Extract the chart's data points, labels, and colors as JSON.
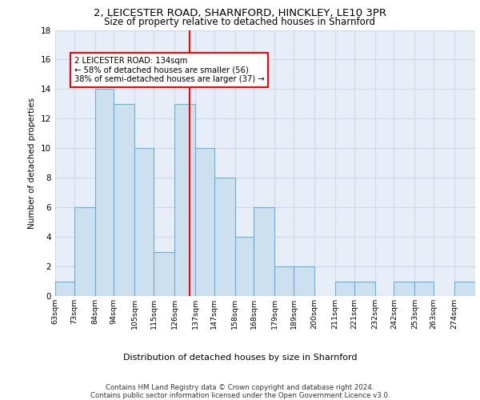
{
  "title1": "2, LEICESTER ROAD, SHARNFORD, HINCKLEY, LE10 3PR",
  "title2": "Size of property relative to detached houses in Sharnford",
  "xlabel": "Distribution of detached houses by size in Sharnford",
  "ylabel": "Number of detached properties",
  "bin_labels": [
    "63sqm",
    "73sqm",
    "84sqm",
    "94sqm",
    "105sqm",
    "115sqm",
    "126sqm",
    "137sqm",
    "147sqm",
    "158sqm",
    "168sqm",
    "179sqm",
    "189sqm",
    "200sqm",
    "211sqm",
    "221sqm",
    "232sqm",
    "242sqm",
    "253sqm",
    "263sqm",
    "274sqm"
  ],
  "bin_edges": [
    63,
    73,
    84,
    94,
    105,
    115,
    126,
    137,
    147,
    158,
    168,
    179,
    189,
    200,
    211,
    221,
    232,
    242,
    253,
    263,
    274,
    285
  ],
  "counts": [
    1,
    6,
    14,
    13,
    10,
    3,
    13,
    10,
    8,
    4,
    6,
    2,
    2,
    0,
    1,
    1,
    0,
    1,
    1,
    0,
    1
  ],
  "bar_color": "#cce0f0",
  "bar_edge_color": "#6aafd6",
  "subject_value": 134,
  "subject_line_color": "red",
  "annotation_text": "2 LEICESTER ROAD: 134sqm\n← 58% of detached houses are smaller (56)\n38% of semi-detached houses are larger (37) →",
  "annotation_box_color": "white",
  "annotation_box_edge_color": "red",
  "ylim": [
    0,
    18
  ],
  "yticks": [
    0,
    2,
    4,
    6,
    8,
    10,
    12,
    14,
    16,
    18
  ],
  "grid_color": "#d0d8e8",
  "footnote": "Contains HM Land Registry data © Crown copyright and database right 2024.\nContains public sector information licensed under the Open Government Licence v3.0.",
  "bg_color": "#e8eef8"
}
